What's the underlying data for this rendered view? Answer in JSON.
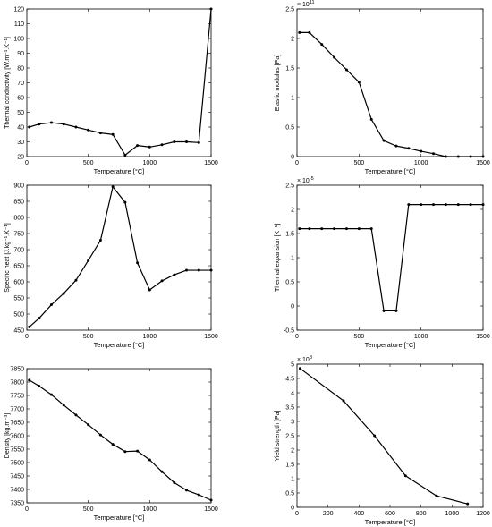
{
  "chart_data": [
    {
      "type": "line",
      "id": "thermal-conductivity",
      "xlabel": "Temperature [°C]",
      "ylabel": "Thermal conductivity [W.m⁻¹.K⁻¹]",
      "xlim": [
        0,
        1500
      ],
      "ylim": [
        20,
        120
      ],
      "xticks": [
        0,
        500,
        1000,
        1500
      ],
      "yticks": [
        20,
        30,
        40,
        50,
        60,
        70,
        80,
        90,
        100,
        110,
        120
      ],
      "y_exponent": "",
      "x": [
        20,
        100,
        200,
        300,
        400,
        500,
        600,
        700,
        800,
        900,
        1000,
        1100,
        1200,
        1300,
        1400,
        1500
      ],
      "y": [
        40,
        42,
        43,
        42,
        40,
        38,
        36,
        35,
        21,
        27.5,
        26.5,
        28,
        30,
        30,
        29.5,
        120
      ]
    },
    {
      "type": "line",
      "id": "elastic-modulus",
      "xlabel": "Temperature [°C]",
      "ylabel": "Elastic modulus [Pa]",
      "xlim": [
        0,
        1500
      ],
      "ylim": [
        0,
        2.5
      ],
      "xticks": [
        0,
        500,
        1000,
        1500
      ],
      "yticks": [
        0,
        0.5,
        1,
        1.5,
        2,
        2.5
      ],
      "y_exponent": "11",
      "x": [
        20,
        100,
        200,
        300,
        400,
        500,
        600,
        700,
        800,
        900,
        1000,
        1100,
        1200,
        1300,
        1400,
        1500
      ],
      "y": [
        2.1,
        2.1,
        1.9,
        1.68,
        1.47,
        1.26,
        0.63,
        0.27,
        0.18,
        0.14,
        0.09,
        0.05,
        0,
        0,
        0,
        0
      ]
    },
    {
      "type": "line",
      "id": "specific-heat",
      "xlabel": "Temperature [°C]",
      "ylabel": "Specific heat [J.kg⁻¹.K⁻¹]",
      "xlim": [
        0,
        1500
      ],
      "ylim": [
        450,
        900
      ],
      "xticks": [
        0,
        500,
        1000,
        1500
      ],
      "yticks": [
        450,
        500,
        550,
        600,
        650,
        700,
        750,
        800,
        850,
        900
      ],
      "y_exponent": "",
      "x": [
        20,
        100,
        200,
        300,
        400,
        500,
        600,
        700,
        800,
        900,
        1000,
        1100,
        1200,
        1300,
        1400,
        1500
      ],
      "y": [
        460,
        487,
        529,
        564,
        605,
        666,
        729,
        895,
        847,
        659,
        575,
        603,
        622,
        636,
        636,
        636
      ]
    },
    {
      "type": "line",
      "id": "thermal-expansion",
      "xlabel": "Temperature [°C]",
      "ylabel": "Thermal expansion [K⁻¹]",
      "xlim": [
        0,
        1500
      ],
      "ylim": [
        -0.5,
        2.5
      ],
      "xticks": [
        0,
        500,
        1000,
        1500
      ],
      "yticks": [
        -0.5,
        0,
        0.5,
        1,
        1.5,
        2,
        2.5
      ],
      "y_exponent": "-5",
      "x": [
        20,
        100,
        200,
        300,
        400,
        500,
        600,
        700,
        800,
        900,
        1000,
        1100,
        1200,
        1300,
        1400,
        1500
      ],
      "y": [
        1.6,
        1.6,
        1.6,
        1.6,
        1.6,
        1.6,
        1.6,
        -0.1,
        -0.1,
        2.1,
        2.1,
        2.1,
        2.1,
        2.1,
        2.1,
        2.1
      ]
    },
    {
      "type": "line",
      "id": "density",
      "xlabel": "Temperature [°C]",
      "ylabel": "Density [kg.m⁻³]",
      "xlim": [
        0,
        1500
      ],
      "ylim": [
        7350,
        7850
      ],
      "xticks": [
        0,
        500,
        1000,
        1500
      ],
      "yticks": [
        7350,
        7400,
        7450,
        7500,
        7550,
        7600,
        7650,
        7700,
        7750,
        7800,
        7850
      ],
      "y_exponent": "",
      "x": [
        20,
        100,
        200,
        300,
        400,
        500,
        600,
        700,
        800,
        900,
        1000,
        1100,
        1200,
        1300,
        1400,
        1500
      ],
      "y": [
        7807,
        7785,
        7753,
        7714,
        7677,
        7641,
        7603,
        7568,
        7541,
        7543,
        7510,
        7466,
        7425,
        7397,
        7380,
        7360
      ]
    },
    {
      "type": "line",
      "id": "yield-strength",
      "xlabel": "Temperature [°C]",
      "ylabel": "Yield strength [Pa]",
      "xlim": [
        0,
        1200
      ],
      "ylim": [
        0,
        5
      ],
      "xticks": [
        0,
        200,
        400,
        600,
        800,
        1000,
        1200
      ],
      "yticks": [
        0,
        0.5,
        1,
        1.5,
        2,
        2.5,
        3,
        3.5,
        4,
        4.5,
        5
      ],
      "y_exponent": "8",
      "x": [
        20,
        300,
        500,
        700,
        900,
        1100
      ],
      "y": [
        4.85,
        3.72,
        2.5,
        1.1,
        0.4,
        0.12
      ]
    }
  ]
}
